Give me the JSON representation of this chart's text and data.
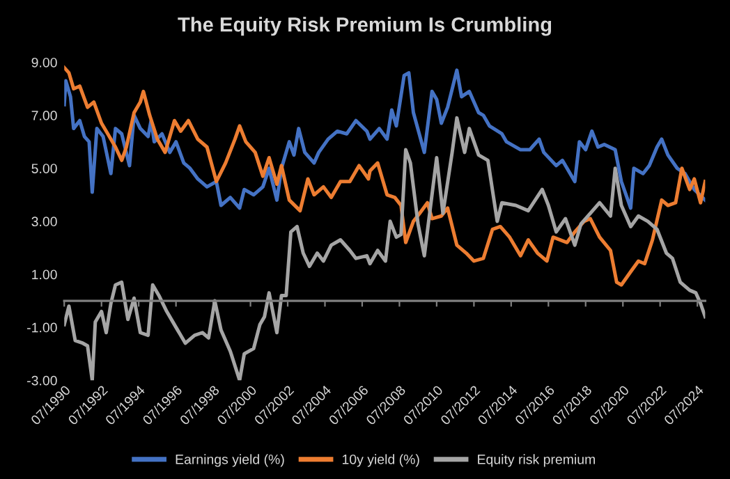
{
  "chart_data": {
    "type": "line",
    "title": "The Equity Risk Premium Is Crumbling",
    "xlim": [
      "1990-07",
      "2024-12"
    ],
    "ylim": [
      -3,
      9
    ],
    "xticks": [
      {
        "value": "1990-07",
        "label": "07/1990"
      },
      {
        "value": "1992-07",
        "label": "07/1992"
      },
      {
        "value": "1994-07",
        "label": "07/1994"
      },
      {
        "value": "1996-07",
        "label": "07/1996"
      },
      {
        "value": "1998-07",
        "label": "07/1998"
      },
      {
        "value": "2000-07",
        "label": "07/2000"
      },
      {
        "value": "2002-07",
        "label": "07/2002"
      },
      {
        "value": "2004-07",
        "label": "07/2004"
      },
      {
        "value": "2006-07",
        "label": "07/2006"
      },
      {
        "value": "2008-07",
        "label": "07/2008"
      },
      {
        "value": "2010-07",
        "label": "07/2010"
      },
      {
        "value": "2012-07",
        "label": "07/2012"
      },
      {
        "value": "2014-07",
        "label": "07/2014"
      },
      {
        "value": "2016-07",
        "label": "07/2016"
      },
      {
        "value": "2018-07",
        "label": "07/2018"
      },
      {
        "value": "2020-07",
        "label": "07/2020"
      },
      {
        "value": "2022-07",
        "label": "07/2022"
      },
      {
        "value": "2024-07",
        "label": "07/2024"
      }
    ],
    "yticks": [
      {
        "value": -3,
        "label": "-3.00"
      },
      {
        "value": -1,
        "label": "-1.00"
      },
      {
        "value": 1,
        "label": "1.00"
      },
      {
        "value": 3,
        "label": "3.00"
      },
      {
        "value": 5,
        "label": "5.00"
      },
      {
        "value": 7,
        "label": "7.00"
      },
      {
        "value": 9,
        "label": "9.00"
      }
    ],
    "grid": false,
    "legend": "bottom",
    "marker": "none",
    "line_style": "solid",
    "series": [
      {
        "name": "Earnings yield (%)",
        "color": "#4472c4",
        "x": [
          "1990-07",
          "1990-08",
          "1990-11",
          "1991-01",
          "1991-05",
          "1991-08",
          "1991-11",
          "1992-01",
          "1992-04",
          "1992-08",
          "1993-01",
          "1993-04",
          "1993-08",
          "1994-01",
          "1994-04",
          "1994-08",
          "1995-01",
          "1995-03",
          "1995-05",
          "1995-10",
          "1996-03",
          "1996-07",
          "1996-12",
          "1997-04",
          "1997-09",
          "1998-03",
          "1998-09",
          "1998-12",
          "1999-06",
          "1999-12",
          "2000-03",
          "2000-09",
          "2001-03",
          "2001-07",
          "2001-12",
          "2002-03",
          "2002-08",
          "2002-11",
          "2003-02",
          "2003-06",
          "2003-12",
          "2004-03",
          "2004-09",
          "2005-03",
          "2005-09",
          "2006-03",
          "2006-10",
          "2006-12",
          "2007-06",
          "2007-11",
          "2008-02",
          "2008-05",
          "2008-10",
          "2009-01",
          "2009-04",
          "2009-11",
          "2010-04",
          "2010-07",
          "2010-10",
          "2011-02",
          "2011-08",
          "2011-11",
          "2012-04",
          "2012-10",
          "2013-01",
          "2013-05",
          "2014-01",
          "2014-04",
          "2015-01",
          "2015-07",
          "2016-01",
          "2016-04",
          "2016-12",
          "2017-04",
          "2017-12",
          "2018-03",
          "2018-07",
          "2018-11",
          "2019-03",
          "2019-07",
          "2020-02",
          "2020-06",
          "2020-12",
          "2021-02",
          "2021-08",
          "2021-12",
          "2022-05",
          "2022-08",
          "2022-12",
          "2023-06",
          "2023-11",
          "2024-05",
          "2024-12"
        ],
        "values": [
          7.4,
          8.3,
          7.7,
          6.5,
          6.8,
          6.2,
          6.0,
          4.1,
          6.5,
          6.2,
          4.8,
          6.5,
          6.3,
          5.1,
          7.0,
          6.5,
          6.2,
          6.8,
          6.0,
          6.3,
          5.6,
          6.0,
          5.2,
          5.0,
          4.6,
          4.3,
          4.5,
          3.6,
          3.9,
          3.5,
          4.2,
          4.0,
          4.3,
          5.0,
          3.8,
          5.0,
          6.0,
          5.5,
          6.5,
          5.6,
          5.2,
          5.6,
          6.1,
          6.4,
          6.3,
          6.8,
          6.4,
          6.1,
          6.5,
          6.1,
          7.2,
          6.6,
          8.5,
          8.6,
          7.1,
          5.6,
          7.9,
          7.6,
          6.7,
          7.3,
          8.7,
          7.7,
          7.9,
          7.1,
          7.0,
          6.6,
          6.3,
          6.0,
          5.7,
          5.7,
          6.1,
          5.6,
          5.1,
          5.3,
          4.5,
          6.0,
          5.7,
          6.4,
          5.8,
          5.9,
          5.7,
          4.5,
          3.5,
          5.0,
          4.8,
          5.1,
          5.8,
          6.1,
          5.5,
          5.0,
          4.8,
          4.2,
          3.8
        ]
      },
      {
        "name": "10y yield (%)",
        "color": "#ed7d31",
        "x": [
          "1990-07",
          "1990-10",
          "1991-01",
          "1991-05",
          "1991-10",
          "1992-02",
          "1992-07",
          "1992-11",
          "1993-04",
          "1993-08",
          "1993-11",
          "1994-04",
          "1994-08",
          "1994-10",
          "1995-02",
          "1995-07",
          "1995-12",
          "1996-06",
          "1996-10",
          "1997-03",
          "1997-09",
          "1998-03",
          "1998-09",
          "1999-03",
          "1999-09",
          "1999-12",
          "2000-04",
          "2000-10",
          "2001-03",
          "2001-07",
          "2001-12",
          "2002-03",
          "2002-08",
          "2003-03",
          "2003-08",
          "2003-12",
          "2004-06",
          "2004-11",
          "2005-05",
          "2005-11",
          "2006-05",
          "2006-11",
          "2006-12",
          "2007-05",
          "2007-11",
          "2008-04",
          "2008-08",
          "2008-11",
          "2009-04",
          "2009-08",
          "2010-01",
          "2010-04",
          "2010-10",
          "2011-02",
          "2011-08",
          "2012-02",
          "2012-07",
          "2013-01",
          "2013-07",
          "2013-12",
          "2014-06",
          "2015-01",
          "2015-06",
          "2015-12",
          "2016-06",
          "2016-10",
          "2017-07",
          "2017-12",
          "2018-06",
          "2018-10",
          "2019-04",
          "2019-11",
          "2020-03",
          "2020-06",
          "2020-12",
          "2021-05",
          "2021-09",
          "2022-02",
          "2022-08",
          "2022-12",
          "2023-05",
          "2023-09",
          "2024-02",
          "2024-05",
          "2024-09",
          "2024-12"
        ],
        "values": [
          8.8,
          8.6,
          8.0,
          8.1,
          7.3,
          7.5,
          6.7,
          6.3,
          5.8,
          5.3,
          5.8,
          7.1,
          7.5,
          7.9,
          7.0,
          6.1,
          5.6,
          6.8,
          6.4,
          6.8,
          6.1,
          5.8,
          4.5,
          5.2,
          6.1,
          6.6,
          6.0,
          5.6,
          4.7,
          5.4,
          4.4,
          5.1,
          3.8,
          3.4,
          4.6,
          4.0,
          4.3,
          3.9,
          4.5,
          4.5,
          5.1,
          4.6,
          4.9,
          5.2,
          4.0,
          3.9,
          3.6,
          2.2,
          3.0,
          3.3,
          3.7,
          3.1,
          3.2,
          3.5,
          2.1,
          1.8,
          1.5,
          1.6,
          2.7,
          2.8,
          2.4,
          1.7,
          2.3,
          1.8,
          1.5,
          2.4,
          2.2,
          2.6,
          3.0,
          3.1,
          2.4,
          1.9,
          0.7,
          0.6,
          1.1,
          1.5,
          1.4,
          2.3,
          3.8,
          3.6,
          3.7,
          5.0,
          4.2,
          4.6,
          3.7,
          4.5
        ]
      },
      {
        "name": "Equity risk premium",
        "color": "#a5a5a5",
        "x": [
          "1990-07",
          "1990-10",
          "1991-02",
          "1991-07",
          "1991-10",
          "1992-01",
          "1992-03",
          "1992-07",
          "1992-10",
          "1993-01",
          "1993-04",
          "1993-08",
          "1993-12",
          "1994-04",
          "1994-08",
          "1995-01",
          "1995-04",
          "1995-08",
          "1996-01",
          "1996-07",
          "1997-01",
          "1997-07",
          "1997-12",
          "1998-04",
          "1998-08",
          "1998-12",
          "1999-06",
          "1999-12",
          "2000-03",
          "2000-09",
          "2001-01",
          "2001-04",
          "2001-07",
          "2001-12",
          "2002-03",
          "2002-06",
          "2002-09",
          "2003-01",
          "2003-05",
          "2003-09",
          "2004-02",
          "2004-06",
          "2004-11",
          "2005-05",
          "2005-11",
          "2006-03",
          "2006-10",
          "2006-12",
          "2007-05",
          "2007-10",
          "2008-01",
          "2008-05",
          "2008-08",
          "2008-11",
          "2009-02",
          "2009-07",
          "2009-11",
          "2010-07",
          "2010-11",
          "2011-05",
          "2011-08",
          "2012-01",
          "2012-04",
          "2012-10",
          "2013-04",
          "2013-10",
          "2014-01",
          "2014-10",
          "2015-06",
          "2016-03",
          "2016-07",
          "2016-12",
          "2017-06",
          "2017-12",
          "2018-04",
          "2018-10",
          "2019-04",
          "2019-11",
          "2020-02",
          "2020-06",
          "2020-12",
          "2021-05",
          "2021-11",
          "2022-05",
          "2022-11",
          "2023-03",
          "2023-08",
          "2024-02",
          "2024-06",
          "2024-09",
          "2024-12"
        ],
        "values": [
          -0.9,
          -0.2,
          -1.5,
          -1.6,
          -1.7,
          -3.0,
          -0.8,
          -0.4,
          -1.2,
          -0.1,
          0.6,
          0.7,
          -0.7,
          0.1,
          -1.2,
          -1.3,
          0.6,
          0.2,
          -0.4,
          -1.0,
          -1.6,
          -1.3,
          -1.2,
          -1.4,
          0.0,
          -1.1,
          -1.9,
          -3.0,
          -2.0,
          -1.8,
          -0.9,
          -0.6,
          0.3,
          -1.2,
          0.2,
          0.2,
          2.6,
          2.8,
          1.8,
          1.3,
          1.8,
          1.5,
          2.1,
          2.3,
          1.9,
          1.6,
          1.7,
          1.4,
          1.9,
          1.5,
          3.0,
          2.4,
          2.5,
          5.7,
          5.2,
          2.9,
          1.7,
          5.4,
          3.3,
          5.6,
          6.9,
          5.6,
          6.5,
          5.5,
          5.3,
          3.0,
          3.7,
          3.6,
          3.4,
          4.2,
          3.6,
          2.6,
          3.1,
          2.1,
          2.9,
          3.3,
          3.7,
          3.2,
          5.0,
          3.6,
          2.8,
          3.2,
          3.0,
          2.7,
          1.8,
          1.6,
          0.7,
          0.4,
          0.3,
          -0.1,
          -0.6
        ]
      }
    ]
  }
}
